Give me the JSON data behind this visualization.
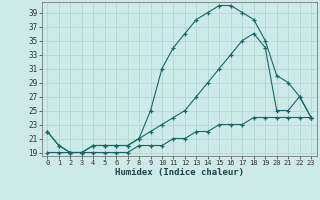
{
  "title": "",
  "xlabel": "Humidex (Indice chaleur)",
  "bg_color": "#cceae7",
  "line_color": "#1a6666",
  "grid_color": "#aad4d0",
  "xlim": [
    -0.5,
    23.5
  ],
  "ylim": [
    18.5,
    40.5
  ],
  "xticks": [
    0,
    1,
    2,
    3,
    4,
    5,
    6,
    7,
    8,
    9,
    10,
    11,
    12,
    13,
    14,
    15,
    16,
    17,
    18,
    19,
    20,
    21,
    22,
    23
  ],
  "yticks": [
    19,
    21,
    23,
    25,
    27,
    29,
    31,
    33,
    35,
    37,
    39
  ],
  "line1_x": [
    0,
    1,
    2,
    3,
    4,
    5,
    6,
    7,
    8,
    9,
    10,
    11,
    12,
    13,
    14,
    15,
    16,
    17,
    18,
    19,
    20,
    21,
    22,
    23
  ],
  "line1_y": [
    22,
    20,
    19,
    19,
    20,
    20,
    20,
    20,
    21,
    25,
    31,
    34,
    36,
    38,
    39,
    40,
    40,
    39,
    38,
    35,
    30,
    29,
    27,
    24
  ],
  "line2_x": [
    0,
    1,
    2,
    3,
    4,
    5,
    6,
    7,
    8,
    9,
    10,
    11,
    12,
    13,
    14,
    15,
    16,
    17,
    18,
    19,
    20,
    21,
    22,
    23
  ],
  "line2_y": [
    22,
    20,
    19,
    19,
    20,
    20,
    20,
    20,
    21,
    22,
    23,
    24,
    25,
    27,
    29,
    31,
    33,
    35,
    36,
    34,
    25,
    25,
    27,
    24
  ],
  "line3_x": [
    0,
    1,
    2,
    3,
    4,
    5,
    6,
    7,
    8,
    9,
    10,
    11,
    12,
    13,
    14,
    15,
    16,
    17,
    18,
    19,
    20,
    21,
    22,
    23
  ],
  "line3_y": [
    19,
    19,
    19,
    19,
    19,
    19,
    19,
    19,
    20,
    20,
    20,
    21,
    21,
    22,
    22,
    23,
    23,
    23,
    24,
    24,
    24,
    24,
    24,
    24
  ]
}
